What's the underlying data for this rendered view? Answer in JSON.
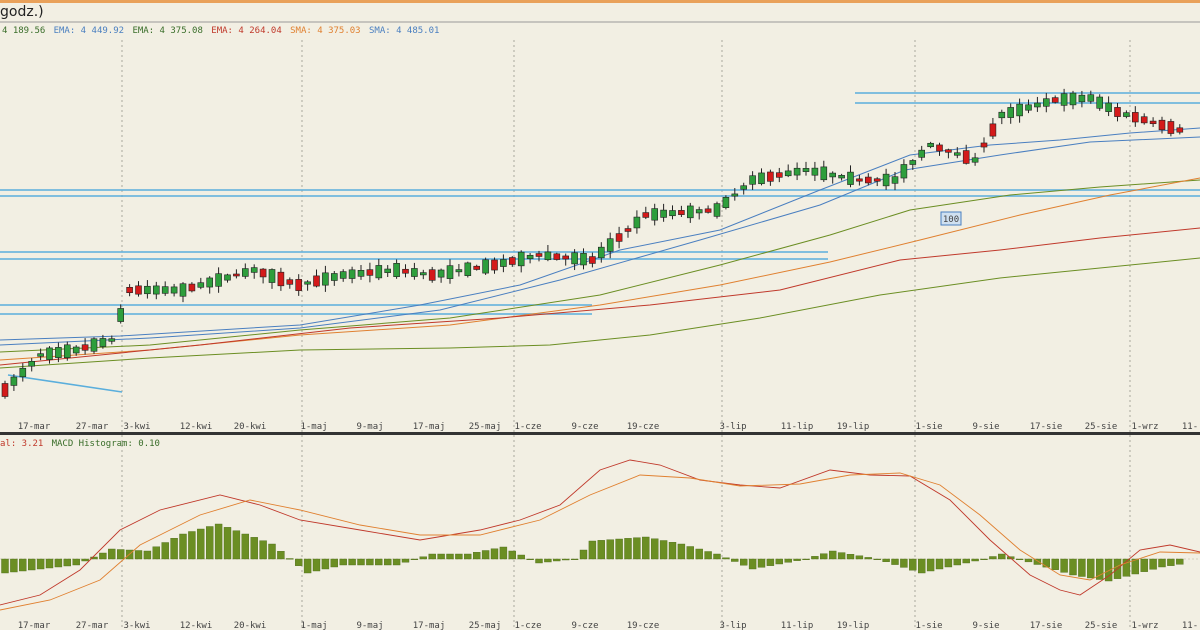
{
  "window": {
    "title_fragment": "godz.)"
  },
  "price_legend": [
    {
      "text": "4 189.56",
      "color": "#3a6e2a"
    },
    {
      "text": "EMA: 4 449.92",
      "color": "#4a7fc0"
    },
    {
      "text": "EMA: 4 375.08",
      "color": "#3a6e2a"
    },
    {
      "text": "EMA: 4 264.04",
      "color": "#c0392b"
    },
    {
      "text": "SMA: 4 375.03",
      "color": "#e08030"
    },
    {
      "text": "SMA: 4 485.01",
      "color": "#4a7fc0"
    }
  ],
  "macd_legend": [
    {
      "text": "al: 3.21",
      "color": "#c0392b"
    },
    {
      "text": "MACD Histogram: 0.10",
      "color": "#3a6e2a"
    }
  ],
  "x_labels": [
    "17-mar",
    "27-mar",
    "3-kwi",
    "12-kwi",
    "20-kwi",
    "1-maj",
    "9-maj",
    "17-maj",
    "25-maj",
    "1-cze",
    "9-cze",
    "19-cze",
    "3-lip",
    "11-lip",
    "19-lip",
    "1-sie",
    "9-sie",
    "17-sie",
    "25-sie",
    "1-wrz",
    "11-"
  ],
  "price_badge": "100",
  "colors": {
    "up": "#2e9e3c",
    "down": "#d41a1a",
    "ema_fast": "#4a7fc0",
    "ema_mid": "#6b8e23",
    "ema_slow": "#c0392b",
    "sma": "#e08030",
    "sma_long": "#4a7fc0",
    "hist": "#6b8e23",
    "level": "#5aaedc"
  },
  "chart_data": [
    {
      "type": "candlestick",
      "x": [
        "17-mar",
        "27-mar",
        "3-kwi",
        "12-kwi",
        "20-kwi",
        "1-maj",
        "9-maj",
        "17-maj",
        "25-maj",
        "1-cze",
        "9-cze",
        "19-cze",
        "3-lip",
        "11-lip",
        "19-lip",
        "1-sie",
        "9-sie",
        "17-sie",
        "25-sie",
        "1-wrz"
      ],
      "series": [
        {
          "name": "EMA",
          "values": [
            4150,
            4165,
            4185,
            4205,
            4220,
            4235,
            4250,
            4275,
            4300,
            4340,
            4380,
            4420,
            4450,
            4490,
            4530,
            4560,
            4580,
            4590,
            4610,
            4630
          ]
        },
        {
          "name": "SMA",
          "values": [
            4180,
            4185,
            4190,
            4195,
            4200,
            4205,
            4210,
            4220,
            4235,
            4260,
            4290,
            4320,
            4350,
            4380,
            4410,
            4430,
            4450,
            4470,
            4490,
            4510
          ]
        },
        {
          "name": "EMA",
          "values": [
            4120,
            4125,
            4130,
            4135,
            4140,
            4145,
            4150,
            4160,
            4170,
            4185,
            4200,
            4220,
            4240,
            4260,
            4280,
            4300,
            4320,
            4335,
            4350,
            4365
          ]
        }
      ]
    },
    {
      "type": "bar",
      "series": [
        {
          "name": "MACD Histogram",
          "values": []
        }
      ]
    }
  ]
}
